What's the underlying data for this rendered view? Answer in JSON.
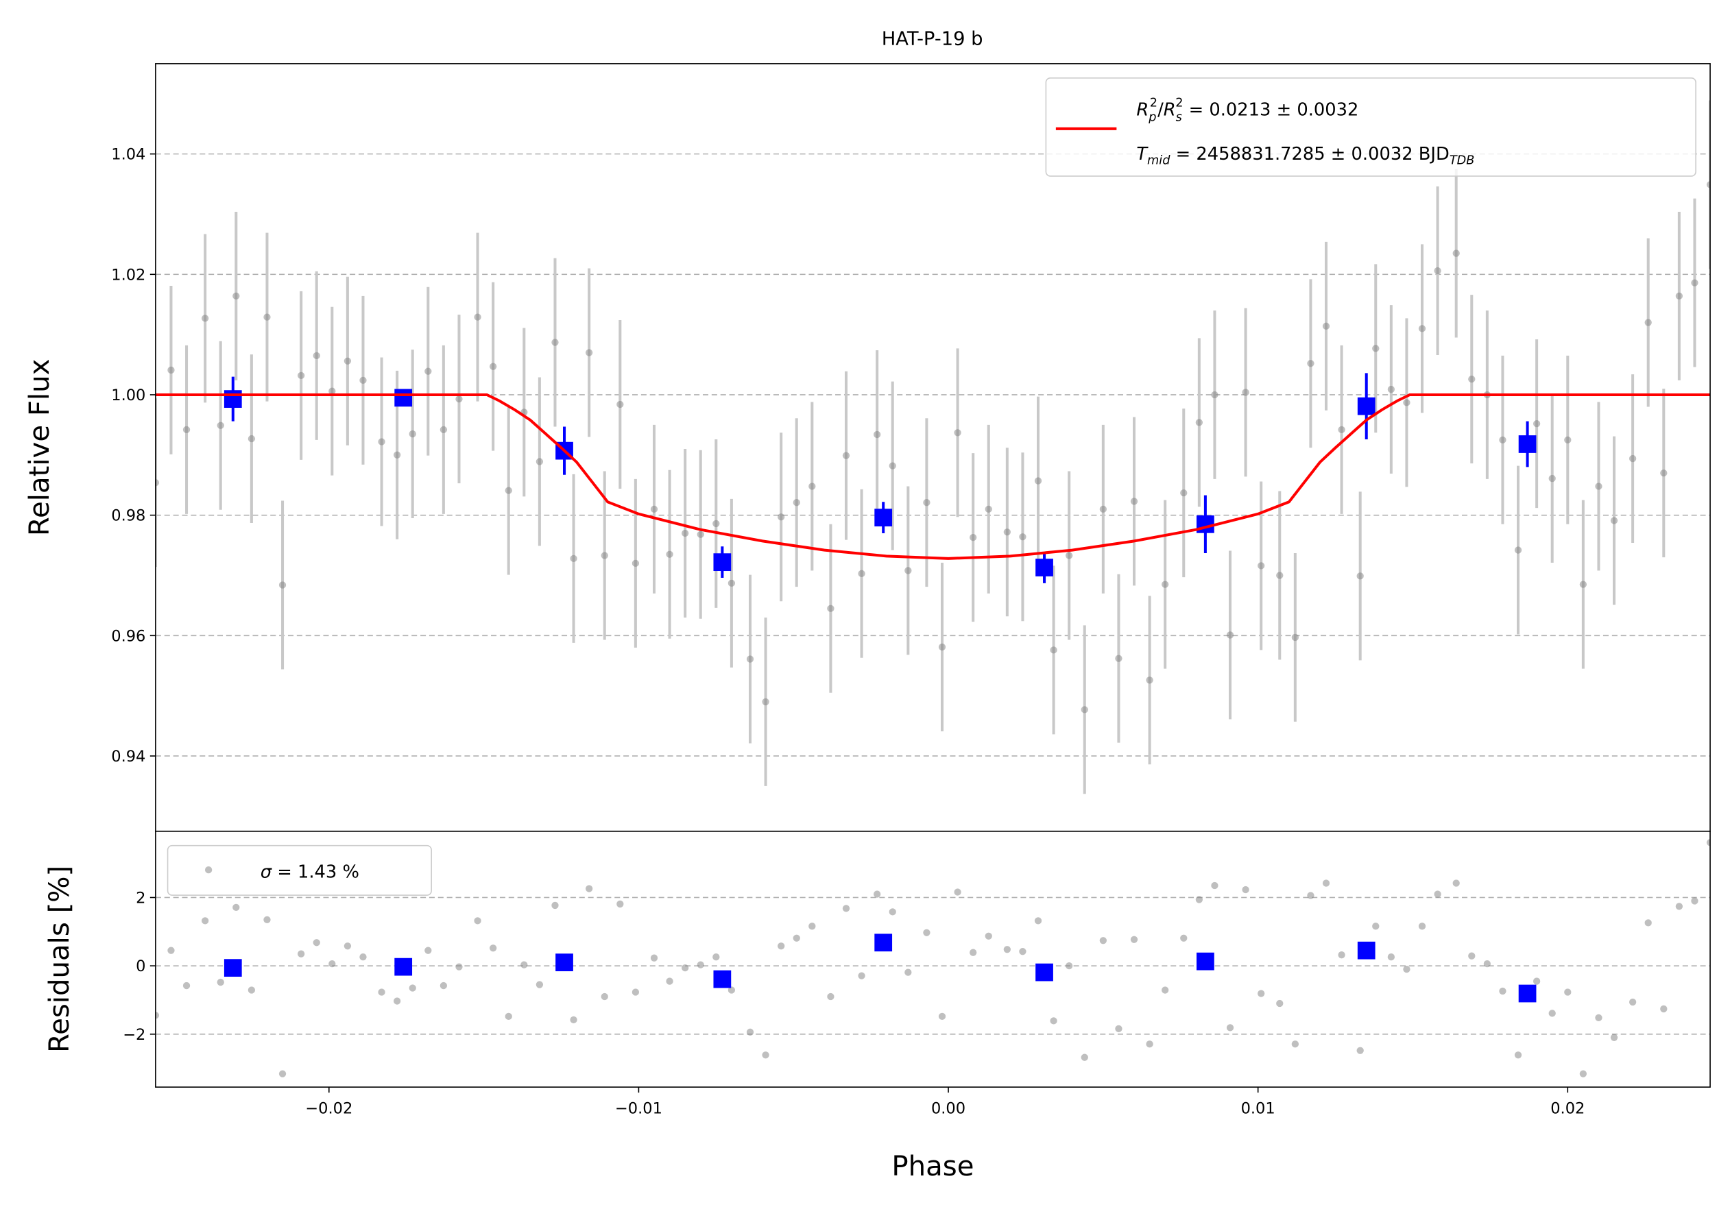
{
  "chart_data": [
    {
      "type": "scatter",
      "title": "HAT-P-19 b",
      "ylabel": "Relative Flux",
      "xlim": [
        -0.0256,
        0.0246
      ],
      "ylim": [
        0.9275,
        1.055
      ],
      "yticks": [
        0.94,
        0.96,
        0.98,
        {
          "value": 1,
          "label": "1.00"
        },
        1.02,
        1.04
      ],
      "grid": true,
      "legend": "upper right",
      "x": [
        -0.0256,
        -0.0251,
        -0.0246,
        -0.024,
        -0.0235,
        -0.023,
        -0.0225,
        -0.022,
        -0.0215,
        -0.0209,
        -0.0204,
        -0.0199,
        -0.0194,
        -0.0189,
        -0.0183,
        -0.0178,
        -0.0173,
        -0.0168,
        -0.0163,
        -0.0158,
        -0.0152,
        -0.0147,
        -0.0142,
        -0.0137,
        -0.0132,
        -0.0127,
        -0.0121,
        -0.0116,
        -0.0111,
        -0.0106,
        -0.0101,
        -0.0095,
        -0.009,
        -0.0085,
        -0.008,
        -0.0075,
        -0.007,
        -0.0064,
        -0.0059,
        -0.0054,
        -0.0049,
        -0.0044,
        -0.0038,
        -0.0033,
        -0.0028,
        -0.0023,
        -0.0018,
        -0.0013,
        -0.0007,
        -0.0002,
        0.0003,
        0.0008,
        0.0013,
        0.0019,
        0.0024,
        0.0029,
        0.0034,
        0.0039,
        0.0044,
        0.005,
        0.0055,
        0.006,
        0.0065,
        0.007,
        0.0076,
        0.0081,
        0.0086,
        0.0091,
        0.0096,
        0.0101,
        0.0107,
        0.0112,
        0.0117,
        0.0122,
        0.0127,
        0.0133,
        0.0138,
        0.0143,
        0.0148,
        0.0153,
        0.0158,
        0.0164,
        0.0169,
        0.0174,
        0.0179,
        0.0184,
        0.019,
        0.0195,
        0.02,
        0.0205,
        0.021,
        0.0215,
        0.0221,
        0.0226,
        0.0231,
        0.0236,
        0.0241,
        0.0246
      ],
      "series": [
        {
          "color": "#808080",
          "errcolor": "#c8c8c8",
          "marker": "circle",
          "yerr": 0.014,
          "values": [
            0.9854,
            1.0041,
            0.9942,
            1.0127,
            0.9949,
            1.0164,
            0.9927,
            1.0129,
            0.9684,
            1.0032,
            1.0065,
            1.0006,
            1.0056,
            1.0024,
            0.9922,
            0.99,
            0.9935,
            1.0039,
            0.9942,
            0.9993,
            1.0129,
            1.0047,
            0.9841,
            0.9971,
            0.9889,
            1.0087,
            0.9728,
            1.007,
            0.9733,
            0.9984,
            0.972,
            0.981,
            0.9735,
            0.977,
            0.9768,
            0.9786,
            0.9687,
            0.9561,
            0.949,
            0.9797,
            0.9821,
            0.9848,
            0.9645,
            0.9899,
            0.9703,
            0.9934,
            0.9882,
            0.9708,
            0.9821,
            0.9581,
            0.9937,
            0.9763,
            0.981,
            0.9772,
            0.9764,
            0.9857,
            0.9576,
            0.9733,
            0.9477,
            0.981,
            0.9562,
            0.9823,
            0.9526,
            0.9685,
            0.9837,
            0.9954,
            1,
            0.9601,
            1.0004,
            0.9716,
            0.97,
            0.9597,
            1.0052,
            1.0114,
            0.9942,
            0.9699,
            1.0077,
            1.0009,
            0.9987,
            1.011,
            1.0206,
            1.0235,
            1.0026,
            1,
            0.9925,
            0.9742,
            0.9952,
            0.9861,
            0.9925,
            0.9685,
            0.9848,
            0.9791,
            0.9894,
            1.012,
            0.987,
            1.0164,
            1.0186,
            1.0349
          ]
        },
        {
          "color": "#0000ff",
          "errcolor": "#0000ff",
          "marker": "square",
          "x": [
            -0.0231,
            -0.0176,
            -0.0124,
            -0.0073,
            -0.0021,
            0.0031,
            0.0083,
            0.0135,
            0.0187
          ],
          "values": [
            0.9993,
            0.9995,
            0.9907,
            0.9722,
            0.9796,
            0.9713,
            0.9785,
            0.9981,
            0.9918
          ],
          "yerr": [
            0.0037,
            0.001,
            0.004,
            0.0026,
            0.0026,
            0.0026,
            0.0048,
            0.0055,
            0.0038
          ]
        },
        {
          "type": "line",
          "color": "#ff0000",
          "name": [
            [
              "R",
              "p",
              "2",
              "/",
              "R",
              "s",
              "2",
              " = 0.0213 ± 0.0032"
            ],
            [
              "T",
              "mid",
              " = 2458831.7285 ± 0.0032 BJD",
              "TDB"
            ]
          ],
          "x": [
            -0.0256,
            -0.0149,
            -0.0145,
            -0.014,
            -0.0135,
            -0.013,
            -0.0125,
            -0.012,
            -0.0115,
            -0.011,
            -0.01,
            -0.008,
            -0.006,
            -0.004,
            -0.002,
            0,
            0.002,
            0.004,
            0.006,
            0.008,
            0.01,
            0.011,
            0.0115,
            0.012,
            0.0125,
            0.013,
            0.0135,
            0.014,
            0.0145,
            0.0149,
            0.0246
          ],
          "values": [
            1,
            1,
            0.999,
            0.9975,
            0.9958,
            0.9935,
            0.9912,
            0.9888,
            0.9855,
            0.9822,
            0.9802,
            0.9776,
            0.9757,
            0.9742,
            0.9732,
            0.9728,
            0.9732,
            0.9742,
            0.9757,
            0.9776,
            0.9802,
            0.9822,
            0.9855,
            0.9888,
            0.9912,
            0.9935,
            0.9958,
            0.9975,
            0.999,
            1,
            1
          ]
        }
      ]
    },
    {
      "type": "scatter",
      "xlabel": "Phase",
      "ylabel": "Residuals [%]",
      "xlim": [
        -0.0256,
        0.0246
      ],
      "ylim": [
        -3.55,
        3.94
      ],
      "xticks": [
        {
          "value": -0.02,
          "label": "−0.02"
        },
        {
          "value": -0.01,
          "label": "−0.01"
        },
        {
          "value": 0,
          "label": "0.00"
        },
        0.01,
        0.02
      ],
      "yticks": [
        {
          "value": -2,
          "label": "−2"
        },
        0,
        2
      ],
      "grid": true,
      "legend": "upper left",
      "x": [
        -0.0256,
        -0.0251,
        -0.0246,
        -0.024,
        -0.0235,
        -0.023,
        -0.0225,
        -0.022,
        -0.0215,
        -0.0209,
        -0.0204,
        -0.0199,
        -0.0194,
        -0.0189,
        -0.0183,
        -0.0178,
        -0.0173,
        -0.0168,
        -0.0163,
        -0.0158,
        -0.0152,
        -0.0147,
        -0.0142,
        -0.0137,
        -0.0132,
        -0.0127,
        -0.0121,
        -0.0116,
        -0.0111,
        -0.0106,
        -0.0101,
        -0.0095,
        -0.009,
        -0.0085,
        -0.008,
        -0.0075,
        -0.007,
        -0.0064,
        -0.0059,
        -0.0054,
        -0.0049,
        -0.0044,
        -0.0038,
        -0.0033,
        -0.0028,
        -0.0023,
        -0.0018,
        -0.0013,
        -0.0007,
        -0.0002,
        0.0003,
        0.0008,
        0.0013,
        0.0019,
        0.0024,
        0.0029,
        0.0034,
        0.0039,
        0.0044,
        0.005,
        0.0055,
        0.006,
        0.0065,
        0.007,
        0.0076,
        0.0081,
        0.0086,
        0.0091,
        0.0096,
        0.0101,
        0.0107,
        0.0112,
        0.0117,
        0.0122,
        0.0127,
        0.0133,
        0.0138,
        0.0143,
        0.0148,
        0.0153,
        0.0158,
        0.0164,
        0.0169,
        0.0174,
        0.0179,
        0.0184,
        0.019,
        0.0195,
        0.02,
        0.0205,
        0.021,
        0.0215,
        0.0221,
        0.0226,
        0.0231,
        0.0236,
        0.0241,
        0.0246
      ],
      "series": [
        {
          "color": "#808080",
          "marker": "circle",
          "name": [
            "σ",
            " = 1.43 %"
          ],
          "values": [
            -1.45,
            0.45,
            -0.58,
            1.32,
            -0.48,
            1.71,
            -0.71,
            1.35,
            -3.16,
            0.35,
            0.68,
            0.06,
            0.58,
            0.26,
            -0.77,
            -1.03,
            -0.65,
            0.45,
            -0.58,
            -0.03,
            1.32,
            0.52,
            -1.48,
            0.03,
            -0.55,
            1.77,
            -1.58,
            2.26,
            -0.9,
            1.81,
            -0.77,
            0.23,
            -0.45,
            -0.06,
            0.03,
            0.26,
            -0.71,
            -1.94,
            -2.61,
            0.58,
            0.81,
            1.16,
            -0.9,
            1.68,
            -0.29,
            2.1,
            1.58,
            -0.19,
            0.97,
            -1.48,
            2.16,
            0.39,
            0.87,
            0.48,
            0.42,
            1.32,
            -1.61,
            0,
            -2.68,
            0.74,
            -1.84,
            0.77,
            -2.29,
            -0.71,
            0.81,
            1.94,
            2.35,
            -1.81,
            2.23,
            -0.81,
            -1.1,
            -2.29,
            2.06,
            2.42,
            0.32,
            -2.48,
            1.16,
            0.26,
            -0.1,
            1.16,
            2.1,
            2.42,
            0.29,
            0.06,
            -0.74,
            -2.61,
            -0.45,
            -1.39,
            -0.77,
            -3.16,
            -1.52,
            -2.1,
            -1.06,
            1.26,
            -1.26,
            1.74,
            1.9,
            3.61
          ]
        },
        {
          "color": "#0000ff",
          "marker": "square",
          "x": [
            -0.0231,
            -0.0176,
            -0.0124,
            -0.0073,
            -0.0021,
            0.0031,
            0.0083,
            0.0135,
            0.0187
          ],
          "values": [
            -0.06,
            -0.03,
            0.1,
            -0.39,
            0.68,
            -0.19,
            0.13,
            0.45,
            -0.81
          ]
        }
      ]
    }
  ]
}
